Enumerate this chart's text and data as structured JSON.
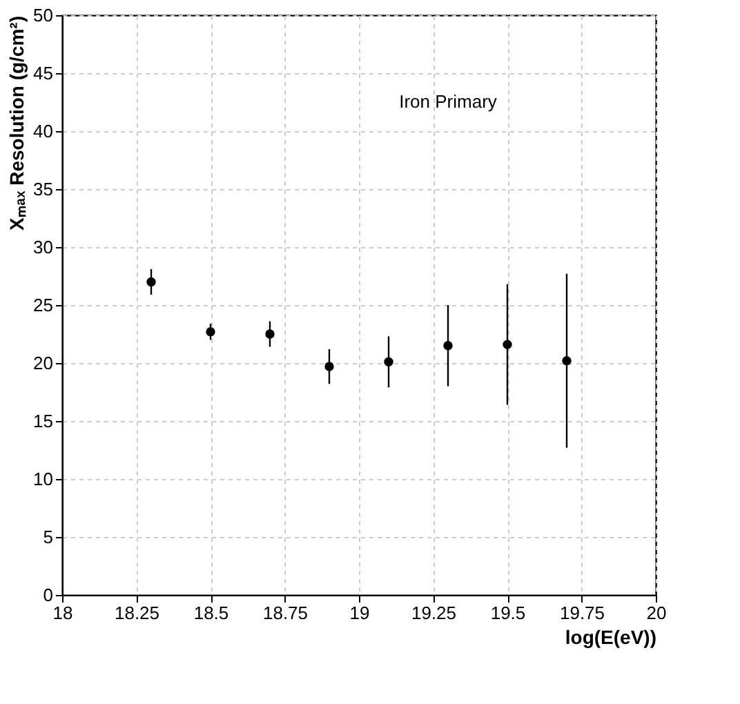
{
  "chart_data": {
    "type": "scatter",
    "xlabel": "log(E(eV))",
    "ylabel": "Xₘₐₓ Resolution (g/cm²)",
    "annotations": [
      "Iron Primary"
    ],
    "x": [
      18.3,
      18.5,
      18.7,
      18.9,
      19.1,
      19.3,
      19.5,
      19.7
    ],
    "series": [
      {
        "color": "#000000",
        "values": [
          27.0,
          22.7,
          22.5,
          19.7,
          20.1,
          21.5,
          21.6,
          20.2
        ],
        "errors": [
          1.1,
          0.7,
          1.1,
          1.5,
          2.2,
          3.5,
          5.2,
          7.5
        ]
      }
    ],
    "xlim": [
      18,
      20
    ],
    "xticks": [
      18,
      18.25,
      18.5,
      18.75,
      19,
      19.25,
      19.5,
      19.75,
      20
    ],
    "ylim": [
      0,
      50
    ],
    "yticks": [
      0,
      5,
      10,
      15,
      20,
      25,
      30,
      35,
      40,
      45,
      50
    ],
    "grid": true,
    "marker": "circle"
  }
}
